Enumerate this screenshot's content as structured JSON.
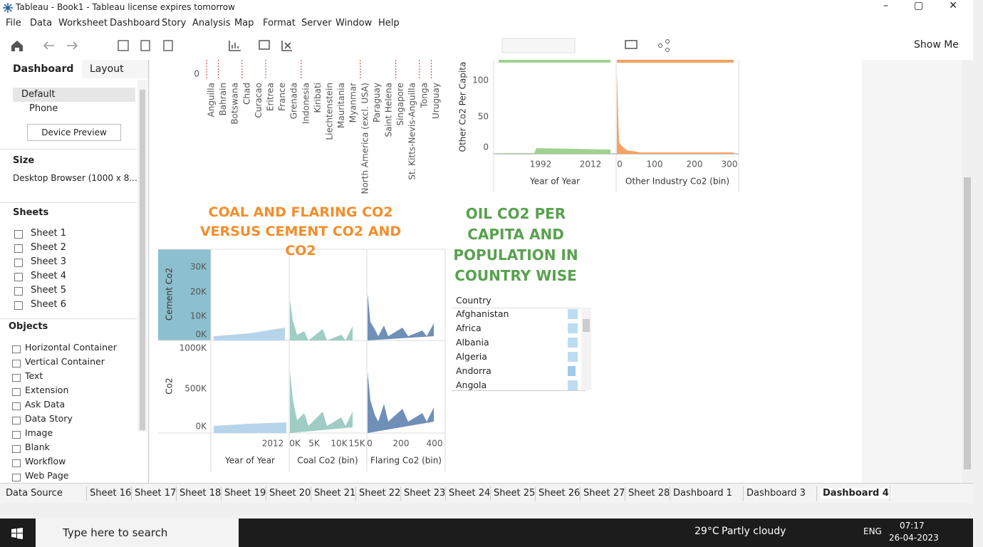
{
  "window": {
    "title": "Tableau - Book1 - Tableau license expires tomorrow"
  },
  "menu": [
    "File",
    "Data",
    "Worksheet",
    "Dashboard",
    "Story",
    "Analysis",
    "Map",
    "Format",
    "Server",
    "Window",
    "Help"
  ],
  "toolbar": {
    "show_me": "Show Me"
  },
  "side_panel": {
    "tabs": [
      "Dashboard",
      "Layout"
    ],
    "devices": [
      "Default",
      "Phone"
    ],
    "device_preview": "Device Preview",
    "size_heading": "Size",
    "size_value": "Desktop Browser (1000 x 8...",
    "sheets_heading": "Sheets",
    "sheets": [
      "Sheet 1",
      "Sheet 2",
      "Sheet 3",
      "Sheet 4",
      "Sheet 5",
      "Sheet 6"
    ],
    "objects_heading": "Objects",
    "objects": [
      "Horizontal Container",
      "Vertical Container",
      "Text",
      "Extension",
      "Ask Data",
      "Data Story",
      "Image",
      "Blank",
      "Workflow",
      "Web Page"
    ]
  },
  "dashboard": {
    "country_chart": {
      "zero_label": "0",
      "countries": [
        "Anguilla",
        "Bahrain",
        "Botswana",
        "Chad",
        "Curacao",
        "Eritrea",
        "France",
        "Grenada",
        "Indonesia",
        "Kiribati",
        "Liechtenstein",
        "Mauritania",
        "Myanmar",
        "North America (excl. USA)",
        "Paraguay",
        "Saint Helena",
        "Singapore",
        "St. Kitts-Nevis-Anguilla",
        "Tonga",
        "Uruguay"
      ]
    },
    "other_chart": {
      "y_title": "Other Co2 Per Capita",
      "y_ticks": [
        "100",
        "50",
        "0"
      ],
      "year_ticks": [
        "1992",
        "2012"
      ],
      "year_title": "Year of Year",
      "bin_ticks": [
        "0",
        "100",
        "200",
        "300"
      ],
      "bin_title": "Other Industry Co2 (bin)"
    },
    "coal_chart": {
      "title": "COAL AND FLARING CO2 VERSUS CEMENT CO2 AND CO2",
      "rows": [
        {
          "title": "Cement Co2",
          "ticks": [
            "30K",
            "20K",
            "10K",
            "0K"
          ]
        },
        {
          "title": "Co2",
          "ticks": [
            "1000K",
            "500K",
            "0K"
          ]
        }
      ],
      "columns": [
        {
          "title": "Year of Year",
          "ticks": [
            "2012"
          ]
        },
        {
          "title": "Coal Co2 (bin)",
          "ticks": [
            "0K",
            "5K",
            "10K",
            "15K"
          ]
        },
        {
          "title": "Flaring Co2 (bin)",
          "ticks": [
            "0",
            "200",
            "400"
          ]
        }
      ]
    },
    "oil_chart": {
      "title": "OIL CO2 PER CAPITA AND POPULATION IN COUNTRY WISE",
      "header": "Country",
      "countries": [
        "Afghanistan",
        "Africa",
        "Albania",
        "Algeria",
        "Andorra",
        "Angola"
      ]
    }
  },
  "sheet_tabs": [
    "Data Source",
    "Sheet 16",
    "Sheet 17",
    "Sheet 18",
    "Sheet 19",
    "Sheet 20",
    "Sheet 21",
    "Sheet 22",
    "Sheet 23",
    "Sheet 24",
    "Sheet 25",
    "Sheet 26",
    "Sheet 27",
    "Sheet 28",
    "Dashboard 1",
    "Dashboard 3",
    "Dashboard 4"
  ],
  "taskbar": {
    "search": "Type here to search",
    "temperature": "29°C",
    "weather": "Partly cloudy",
    "language": "ENG",
    "time": "07:17",
    "date": "26-04-2023"
  }
}
